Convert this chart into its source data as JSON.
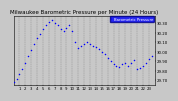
{
  "title": "Milwaukee Barometric Pressure per Minute (24 Hours)",
  "bg_color": "#c8c8c8",
  "plot_bg_color": "#c8c8c8",
  "dot_color": "#0000ff",
  "legend_color": "#0000ff",
  "legend_label": "Barometric Pressure",
  "y_label_values": [
    29.7,
    29.8,
    29.9,
    30.0,
    30.1,
    30.2,
    30.3
  ],
  "ylim": [
    29.65,
    30.38
  ],
  "x_ticks": [
    1,
    2,
    3,
    4,
    5,
    6,
    7,
    8,
    9,
    10,
    11,
    12,
    13,
    14,
    15,
    16,
    17,
    18,
    19,
    20,
    21,
    22,
    23
  ],
  "xlim": [
    0.0,
    24.0
  ],
  "data_x": [
    0.1,
    0.5,
    1.0,
    1.5,
    2.0,
    2.5,
    3.0,
    3.5,
    4.0,
    4.5,
    5.0,
    5.5,
    6.0,
    6.5,
    7.0,
    7.5,
    8.0,
    8.5,
    9.0,
    9.5,
    10.0,
    10.5,
    11.0,
    11.5,
    12.0,
    12.5,
    13.0,
    13.5,
    14.0,
    14.5,
    15.0,
    15.5,
    16.0,
    16.5,
    17.0,
    17.5,
    18.0,
    18.5,
    19.0,
    19.5,
    20.0,
    20.5,
    21.0,
    21.5,
    22.0,
    22.5,
    23.0,
    23.5
  ],
  "data_y": [
    29.68,
    29.71,
    29.76,
    29.82,
    29.88,
    29.95,
    30.02,
    30.08,
    30.14,
    30.19,
    30.24,
    30.28,
    30.31,
    30.33,
    30.3,
    30.28,
    30.24,
    30.22,
    30.25,
    30.28,
    30.22,
    30.1,
    30.04,
    30.06,
    30.08,
    30.1,
    30.08,
    30.06,
    30.05,
    30.03,
    30.0,
    29.98,
    29.93,
    29.9,
    29.87,
    29.85,
    29.84,
    29.87,
    29.88,
    29.85,
    29.88,
    29.91,
    29.82,
    29.83,
    29.85,
    29.88,
    29.92,
    29.95
  ],
  "grid_color": "#888888",
  "title_fontsize": 4.0,
  "tick_fontsize": 2.8,
  "dot_size": 1.2
}
